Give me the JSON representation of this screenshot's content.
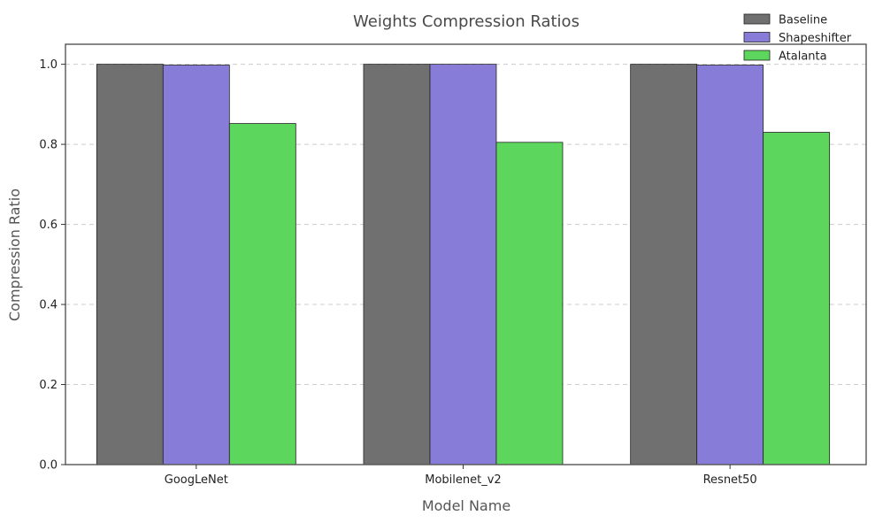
{
  "chart_data": {
    "type": "bar",
    "title": "Weights Compression Ratios",
    "xlabel": "Model Name",
    "ylabel": "Compression Ratio",
    "categories": [
      "GoogLeNet",
      "Mobilenet_v2",
      "Resnet50"
    ],
    "series": [
      {
        "name": "Baseline",
        "color": "#707070",
        "values": [
          1.0,
          1.0,
          1.0
        ]
      },
      {
        "name": "Shapeshifter",
        "color": "#877dd8",
        "values": [
          0.998,
          1.0,
          0.998
        ]
      },
      {
        "name": "Atalanta",
        "color": "#5cd65c",
        "values": [
          0.852,
          0.805,
          0.83
        ]
      }
    ],
    "ylim": [
      0,
      1.05
    ],
    "yticks": [
      "0.0",
      "0.2",
      "0.4",
      "0.6",
      "0.8",
      "1.0"
    ],
    "ytick_values": [
      0,
      0.2,
      0.4,
      0.6,
      0.8,
      1.0
    ],
    "grid": true,
    "legend_position": "top-right"
  }
}
